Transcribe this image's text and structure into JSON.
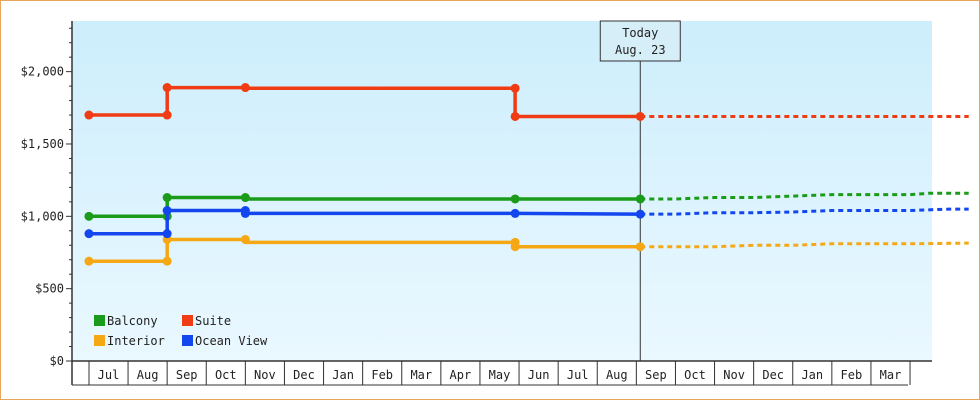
{
  "chart_data": {
    "type": "line",
    "title": "",
    "xlabel": "",
    "ylabel": "",
    "ylim": [
      0,
      2350
    ],
    "y_ticks": [
      {
        "value": 0,
        "label": "$0"
      },
      {
        "value": 500,
        "label": "$500"
      },
      {
        "value": 1000,
        "label": "$1,000"
      },
      {
        "value": 1500,
        "label": "$1,500"
      },
      {
        "value": 2000,
        "label": "$2,000"
      }
    ],
    "x_months": [
      "Jul",
      "Aug",
      "Sep",
      "Oct",
      "Nov",
      "Dec",
      "Jan",
      "Feb",
      "Mar",
      "Apr",
      "May",
      "Jun",
      "Jul",
      "Aug",
      "Sep",
      "Oct",
      "Nov",
      "Dec",
      "Jan",
      "Feb",
      "Mar"
    ],
    "today": {
      "line1": "Today",
      "line2": "Aug. 23",
      "x": 13.6
    },
    "legend_placement": "bottom-left",
    "colors": {
      "background_top": "#cdeefc",
      "background_bottom": "#eaf8ff",
      "frame": "#e8a65a",
      "axis": "#333333",
      "today_line": "#333333"
    },
    "series": [
      {
        "name": "Balcony",
        "color": "#1a9c1a",
        "points": [
          [
            -0.5,
            1000
          ],
          [
            1.5,
            1000
          ],
          [
            1.5,
            1130
          ],
          [
            3.5,
            1130
          ],
          [
            3.5,
            1120
          ],
          [
            10.4,
            1120
          ],
          [
            13.6,
            1120
          ]
        ],
        "markers": [
          [
            -0.5,
            1000
          ],
          [
            1.5,
            1000
          ],
          [
            1.5,
            1130
          ],
          [
            3.5,
            1130
          ],
          [
            10.4,
            1120
          ],
          [
            13.6,
            1120
          ]
        ],
        "projection": [
          [
            13.6,
            1120
          ],
          [
            14.5,
            1120
          ],
          [
            15.5,
            1130
          ],
          [
            16.5,
            1130
          ],
          [
            17.5,
            1140
          ],
          [
            18.5,
            1150
          ],
          [
            19.5,
            1150
          ],
          [
            20.5,
            1150
          ],
          [
            21.0,
            1160
          ],
          [
            22.0,
            1160
          ]
        ]
      },
      {
        "name": "Suite",
        "color": "#f03c14",
        "points": [
          [
            -0.5,
            1700
          ],
          [
            1.5,
            1700
          ],
          [
            1.5,
            1890
          ],
          [
            3.5,
            1890
          ],
          [
            3.5,
            1885
          ],
          [
            10.4,
            1885
          ],
          [
            10.4,
            1690
          ],
          [
            13.6,
            1690
          ]
        ],
        "markers": [
          [
            -0.5,
            1700
          ],
          [
            1.5,
            1700
          ],
          [
            1.5,
            1890
          ],
          [
            3.5,
            1890
          ],
          [
            10.4,
            1885
          ],
          [
            10.4,
            1690
          ],
          [
            13.6,
            1690
          ]
        ],
        "projection": [
          [
            13.6,
            1690
          ],
          [
            22.0,
            1690
          ]
        ]
      },
      {
        "name": "Interior",
        "color": "#f5a814",
        "points": [
          [
            -0.5,
            690
          ],
          [
            1.5,
            690
          ],
          [
            1.5,
            840
          ],
          [
            3.5,
            840
          ],
          [
            3.5,
            820
          ],
          [
            10.4,
            820
          ],
          [
            10.4,
            790
          ],
          [
            13.6,
            790
          ]
        ],
        "markers": [
          [
            -0.5,
            690
          ],
          [
            1.5,
            690
          ],
          [
            1.5,
            840
          ],
          [
            3.5,
            840
          ],
          [
            10.4,
            820
          ],
          [
            10.4,
            790
          ],
          [
            13.6,
            790
          ]
        ],
        "projection": [
          [
            13.6,
            790
          ],
          [
            15.5,
            790
          ],
          [
            16.5,
            800
          ],
          [
            17.5,
            800
          ],
          [
            18.5,
            810
          ],
          [
            20.5,
            810
          ],
          [
            22.0,
            815
          ]
        ]
      },
      {
        "name": "Ocean View",
        "color": "#1446f0",
        "points": [
          [
            -0.5,
            880
          ],
          [
            1.5,
            880
          ],
          [
            1.5,
            1040
          ],
          [
            3.5,
            1040
          ],
          [
            3.5,
            1020
          ],
          [
            10.4,
            1020
          ],
          [
            13.6,
            1015
          ]
        ],
        "markers": [
          [
            -0.5,
            880
          ],
          [
            1.5,
            880
          ],
          [
            1.5,
            1040
          ],
          [
            3.5,
            1040
          ],
          [
            3.5,
            1020
          ],
          [
            10.4,
            1020
          ],
          [
            13.6,
            1015
          ]
        ],
        "projection": [
          [
            13.6,
            1015
          ],
          [
            14.5,
            1015
          ],
          [
            15.5,
            1025
          ],
          [
            16.5,
            1025
          ],
          [
            17.5,
            1030
          ],
          [
            18.5,
            1040
          ],
          [
            20.5,
            1040
          ],
          [
            21.5,
            1050
          ],
          [
            22.0,
            1050
          ]
        ]
      }
    ],
    "legend_order": [
      "Balcony",
      "Suite",
      "Interior",
      "Ocean View"
    ]
  }
}
